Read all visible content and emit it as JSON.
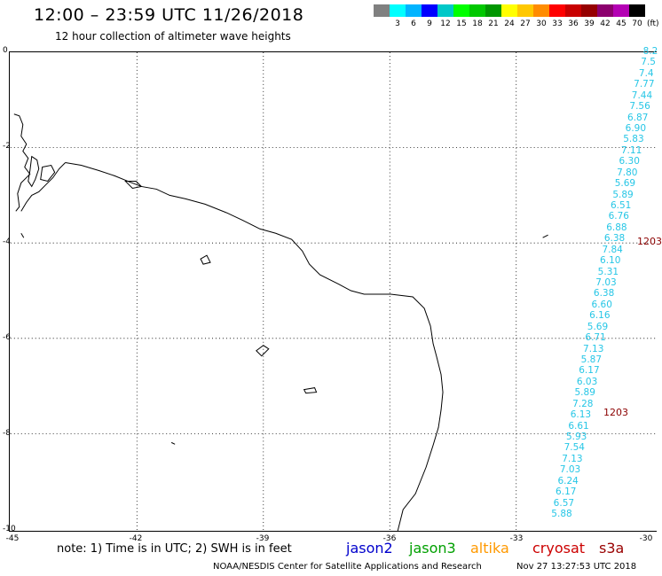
{
  "title": "12:00 – 23:59 UTC 11/26/2018",
  "subtitle": "12 hour collection of altimeter wave heights",
  "legend": {
    "colors": [
      "#808080",
      "#00ffff",
      "#00b4ff",
      "#0000ff",
      "#00c8c8",
      "#00ff00",
      "#00c800",
      "#009600",
      "#ffff00",
      "#ffc800",
      "#ff8c00",
      "#ff0000",
      "#c80000",
      "#960000",
      "#8c006e",
      "#b400b4",
      "#000000"
    ],
    "labels": [
      "",
      "3",
      "6",
      "9",
      "12",
      "15",
      "18",
      "21",
      "24",
      "27",
      "30",
      "33",
      "36",
      "39",
      "42",
      "45",
      "70"
    ],
    "unit": "(ft)"
  },
  "axes": {
    "x_ticks": [
      "-45",
      "-42",
      "-39",
      "-36",
      "-33",
      "-30"
    ],
    "y_ticks": [
      "0",
      "-2",
      "-4",
      "-6",
      "-8",
      "-10"
    ]
  },
  "track": {
    "swh_values": [
      "8.2",
      "7.5",
      "7.4",
      "7.77",
      "7.44",
      "7.56",
      "6.87",
      "6.90",
      "5.83",
      "7.11",
      "6.30",
      "7.80",
      "5.69",
      "5.89",
      "6.51",
      "6.76",
      "6.88",
      "6.38",
      "7.84",
      "6.10",
      "5.31",
      "7.03",
      "6.38",
      "6.60",
      "6.16",
      "5.69",
      "6.71",
      "7.13",
      "5.87",
      "6.17",
      "6.03",
      "5.89",
      "7.28",
      "6.13",
      "6.61",
      "5.93",
      "7.54",
      "7.13",
      "7.03",
      "6.24",
      "6.17",
      "6.57",
      "5.88"
    ],
    "time_labels": [
      "1203",
      "1203"
    ]
  },
  "footer": {
    "note": "note: 1) Time is in UTC; 2) SWH is in feet",
    "satellites": [
      {
        "name": "jason2",
        "color": "#0000cc"
      },
      {
        "name": "jason3",
        "color": "#00a000"
      },
      {
        "name": "altika",
        "color": "#ff9900"
      },
      {
        "name": "cryosat",
        "color": "#cc0000"
      },
      {
        "name": "s3a",
        "color": "#990000"
      }
    ],
    "credit": "NOAA/NESDIS Center for Satellite Applications and Research",
    "timestamp": "Nov 27 13:27:53 UTC 2018"
  }
}
